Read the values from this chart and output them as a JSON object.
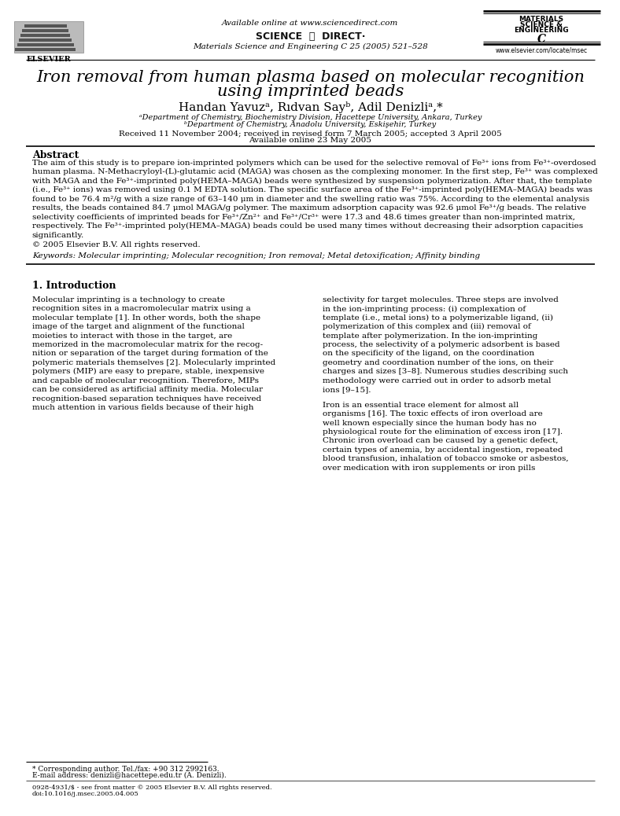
{
  "bg_color": "#ffffff",
  "header_url": "Available online at www.sciencedirect.com",
  "journal_line": "Materials Science and Engineering C 25 (2005) 521–528",
  "journal_name_line1": "MATERIALS",
  "journal_name_line2": "SCIENCE &",
  "journal_name_line3": "ENGINEERING",
  "journal_name_line4": "C",
  "journal_website": "www.elsevier.com/locate/msec",
  "elsevier_label": "ELSEVIER",
  "paper_title_line1": "Iron removal from human plasma based on molecular recognition",
  "paper_title_line2": "using imprinted beads",
  "authors": "Handan Yavuzᵃ, Rıdvan Sayᵇ, Adil Denizliᵃ,*",
  "affil_a": "ᵃDepartment of Chemistry, Biochemistry Division, Hacettepe University, Ankara, Turkey",
  "affil_b": "ᵇDepartment of Chemistry, Anadolu University, Eskişehir, Turkey",
  "received_line": "Received 11 November 2004; received in revised form 7 March 2005; accepted 3 April 2005",
  "available_line": "Available online 23 May 2005",
  "abstract_title": "Abstract",
  "abstract_text": "The aim of this study is to prepare ion-imprinted polymers which can be used for the selective removal of Fe³⁺ ions from Fe³⁺-overdosed\nhuman plasma. N-Methacryloyl-(L)-glutamic acid (MAGA) was chosen as the complexing monomer. In the first step, Fe³⁺ was complexed\nwith MAGA and the Fe³⁺-imprinted poly(HEMA–MAGA) beads were synthesized by suspension polymerization. After that, the template\n(i.e., Fe³⁺ ions) was removed using 0.1 M EDTA solution. The specific surface area of the Fe³⁺-imprinted poly(HEMA–MAGA) beads was\nfound to be 76.4 m²/g with a size range of 63–140 μm in diameter and the swelling ratio was 75%. According to the elemental analysis\nresults, the beads contained 84.7 μmol MAGA/g polymer. The maximum adsorption capacity was 92.6 μmol Fe³⁺/g beads. The relative\nselectivity coefficients of imprinted beads for Fe³⁺/Zn²⁺ and Fe³⁺/Cr³⁺ were 17.3 and 48.6 times greater than non-imprinted matrix,\nrespectively. The Fe³⁺-imprinted poly(HEMA–MAGA) beads could be used many times without decreasing their adsorption capacities\nsignificantly.",
  "copyright_text": "© 2005 Elsevier B.V. All rights reserved.",
  "keywords_text": "Keywords: Molecular imprinting; Molecular recognition; Iron removal; Metal detoxification; Affinity binding",
  "section1_title": "1. Introduction",
  "intro_left_col": "Molecular imprinting is a technology to create\nrecognition sites in a macromolecular matrix using a\nmolecular template [1]. In other words, both the shape\nimage of the target and alignment of the functional\nmoieties to interact with those in the target, are\nmemorized in the macromolecular matrix for the recog-\nnition or separation of the target during formation of the\npolymeric materials themselves [2]. Molecularly imprinted\npolymers (MIP) are easy to prepare, stable, inexpensive\nand capable of molecular recognition. Therefore, MIPs\ncan be considered as artificial affinity media. Molecular\nrecognition-based separation techniques have received\nmuch attention in various fields because of their high",
  "intro_right_col": "selectivity for target molecules. Three steps are involved\nin the ion-imprinting process: (i) complexation of\ntemplate (i.e., metal ions) to a polymerizable ligand, (ii)\npolymerization of this complex and (iii) removal of\ntemplate after polymerization. In the ion-imprinting\nprocess, the selectivity of a polymeric adsorbent is based\non the specificity of the ligand, on the coordination\ngeometry and coordination number of the ions, on their\ncharges and sizes [3–8]. Numerous studies describing such\nmethodology were carried out in order to adsorb metal\nions [9–15].",
  "intro_right_col2": "Iron is an essential trace element for almost all\norganisms [16]. The toxic effects of iron overload are\nwell known especially since the human body has no\nphysiological route for the elimination of excess iron [17].\nChronic iron overload can be caused by a genetic defect,\ncertain types of anemia, by accidental ingestion, repeated\nblood transfusion, inhalation of tobacco smoke or asbestos,\nover medication with iron supplements or iron pills",
  "footnote_star": "* Corresponding author. Tel./fax: +90 312 2992163.",
  "footnote_email": "E-mail address: denizli@hacettepe.edu.tr (A. Denizli).",
  "footer_issn": "0928-4931/$ - see front matter © 2005 Elsevier B.V. All rights reserved.",
  "footer_doi": "doi:10.1016/j.msec.2005.04.005"
}
